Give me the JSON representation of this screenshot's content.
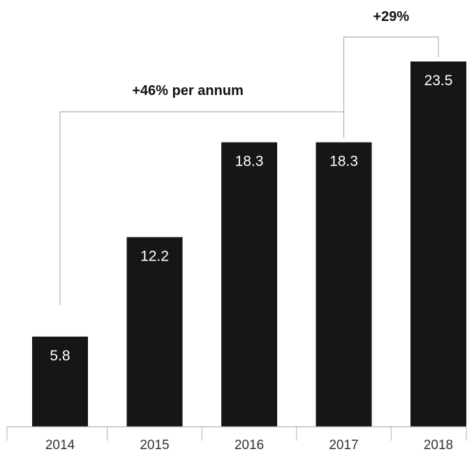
{
  "chart_data": {
    "type": "bar",
    "categories": [
      "2014",
      "2015",
      "2016",
      "2017",
      "2018"
    ],
    "values": [
      5.8,
      12.2,
      18.3,
      18.3,
      23.5
    ],
    "value_labels": [
      "5.8",
      "12.2",
      "18.3",
      "18.3",
      "23.5"
    ],
    "title": "",
    "xlabel": "",
    "ylabel": "",
    "ylim": [
      0,
      23.5
    ],
    "grid": false,
    "bar_color": "#161616",
    "annotations": [
      {
        "text": "+46% per annum",
        "from": "2014",
        "to": "2017"
      },
      {
        "text": "+29%",
        "from": "2017",
        "to": "2018"
      }
    ]
  }
}
